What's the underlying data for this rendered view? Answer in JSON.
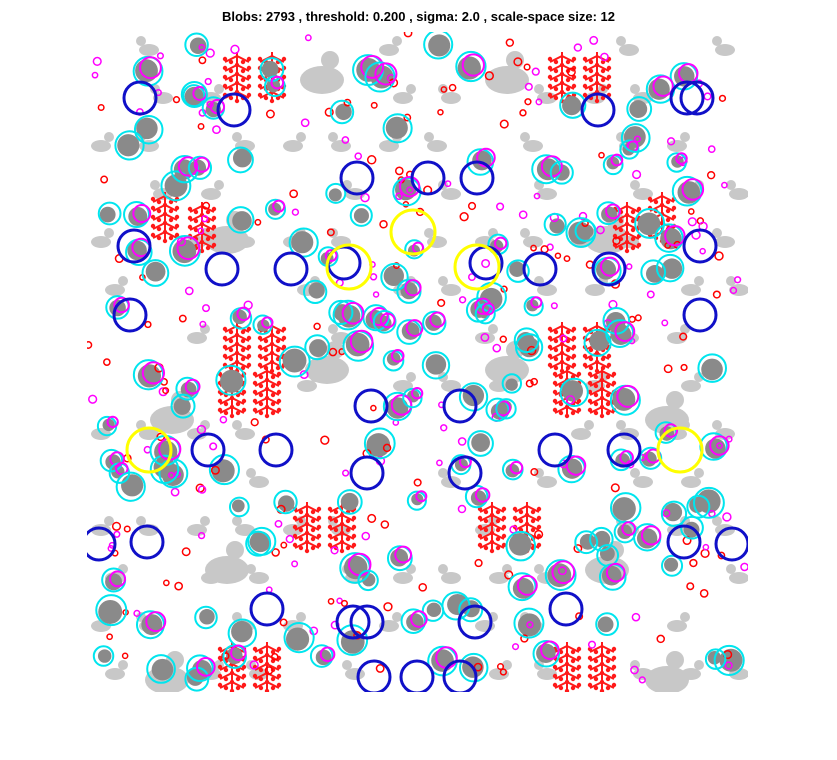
{
  "figure": {
    "title": "Blobs: 2793 , threshold: 0.200 , sigma: 2.0 , scale-space size: 12"
  },
  "image": {
    "description_colors": {
      "background": "#ffffff",
      "silhouette_light": "#c8c8c8",
      "silhouette_dark": "#8a8a8a",
      "tree_motif": "#ff1a1a"
    }
  },
  "blob_markers": {
    "scale_colors": {
      "smallest": "#ff0000",
      "small": "#ff00ff",
      "medium": "#00e5ee",
      "large": "#1010c8",
      "largest": "#ffff00"
    },
    "marker_shape": "circle-outline"
  }
}
